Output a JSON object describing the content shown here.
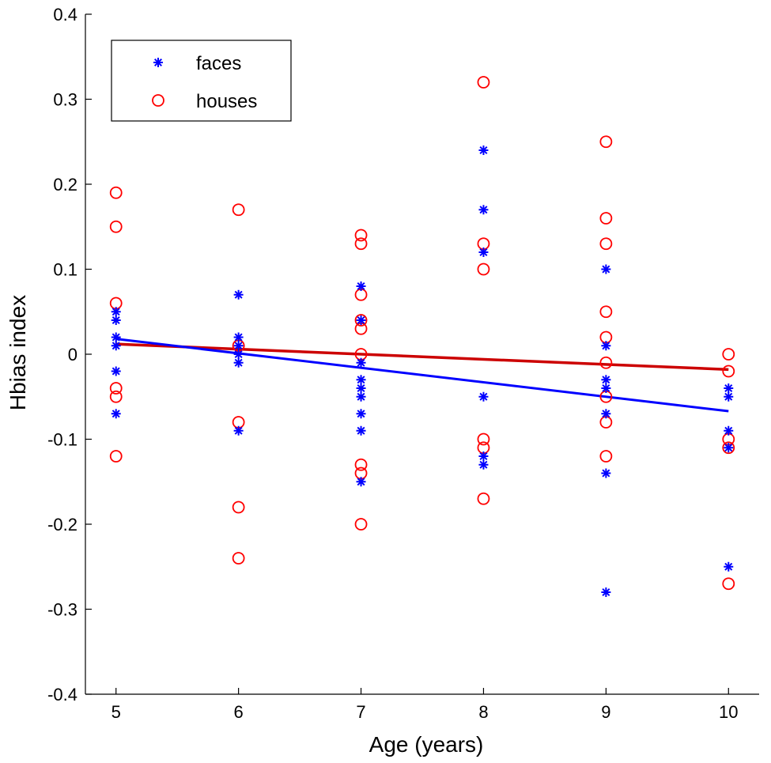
{
  "chart_data": {
    "type": "scatter",
    "title": "",
    "xlabel": "Age (years)",
    "ylabel": "Hbias index",
    "xlim": [
      4.75,
      10.25
    ],
    "ylim": [
      -0.4,
      0.4
    ],
    "xticks": [
      5,
      6,
      7,
      8,
      9,
      10
    ],
    "xtick_labels": [
      "5",
      "6",
      "7",
      "8",
      "9",
      "10"
    ],
    "yticks": [
      -0.4,
      -0.3,
      -0.2,
      -0.1,
      0,
      0.1,
      0.2,
      0.3,
      0.4
    ],
    "ytick_labels": [
      "-0.4",
      "-0.3",
      "-0.2",
      "-0.1",
      "0",
      "0.1",
      "0.2",
      "0.3",
      "0.4"
    ],
    "grid": false,
    "legend_position": "top-left",
    "series": [
      {
        "name": "faces",
        "marker": "asterisk",
        "color": "#0000ff",
        "points": [
          [
            5,
            0.05
          ],
          [
            5,
            0.04
          ],
          [
            5,
            0.02
          ],
          [
            5,
            0.01
          ],
          [
            5,
            -0.02
          ],
          [
            5,
            -0.07
          ],
          [
            6,
            0.07
          ],
          [
            6,
            0.02
          ],
          [
            6,
            0.01
          ],
          [
            6,
            0.0
          ],
          [
            6,
            -0.01
          ],
          [
            6,
            -0.09
          ],
          [
            7,
            0.08
          ],
          [
            7,
            0.04
          ],
          [
            7,
            -0.01
          ],
          [
            7,
            -0.03
          ],
          [
            7,
            -0.04
          ],
          [
            7,
            -0.05
          ],
          [
            7,
            -0.07
          ],
          [
            7,
            -0.09
          ],
          [
            7,
            -0.15
          ],
          [
            8,
            0.24
          ],
          [
            8,
            0.17
          ],
          [
            8,
            0.12
          ],
          [
            8,
            -0.05
          ],
          [
            8,
            -0.12
          ],
          [
            8,
            -0.13
          ],
          [
            9,
            0.1
          ],
          [
            9,
            0.01
          ],
          [
            9,
            -0.03
          ],
          [
            9,
            -0.04
          ],
          [
            9,
            -0.07
          ],
          [
            9,
            -0.14
          ],
          [
            9,
            -0.28
          ],
          [
            10,
            -0.04
          ],
          [
            10,
            -0.05
          ],
          [
            10,
            -0.09
          ],
          [
            10,
            -0.11
          ],
          [
            10,
            -0.25
          ]
        ],
        "fit": {
          "x": [
            5,
            10
          ],
          "y": [
            0.018,
            -0.067
          ]
        }
      },
      {
        "name": "houses",
        "marker": "circle",
        "color": "#ff0000",
        "fit_color": "#cc0000",
        "points": [
          [
            5,
            0.19
          ],
          [
            5,
            0.15
          ],
          [
            5,
            0.06
          ],
          [
            5,
            -0.04
          ],
          [
            5,
            -0.05
          ],
          [
            5,
            -0.12
          ],
          [
            6,
            0.17
          ],
          [
            6,
            0.01
          ],
          [
            6,
            -0.08
          ],
          [
            6,
            -0.18
          ],
          [
            6,
            -0.24
          ],
          [
            7,
            0.14
          ],
          [
            7,
            0.13
          ],
          [
            7,
            0.07
          ],
          [
            7,
            0.04
          ],
          [
            7,
            0.03
          ],
          [
            7,
            0.0
          ],
          [
            7,
            -0.13
          ],
          [
            7,
            -0.14
          ],
          [
            7,
            -0.2
          ],
          [
            8,
            0.32
          ],
          [
            8,
            0.13
          ],
          [
            8,
            0.1
          ],
          [
            8,
            -0.1
          ],
          [
            8,
            -0.11
          ],
          [
            8,
            -0.17
          ],
          [
            9,
            0.25
          ],
          [
            9,
            0.16
          ],
          [
            9,
            0.13
          ],
          [
            9,
            0.05
          ],
          [
            9,
            0.02
          ],
          [
            9,
            -0.01
          ],
          [
            9,
            -0.05
          ],
          [
            9,
            -0.08
          ],
          [
            9,
            -0.12
          ],
          [
            10,
            0.0
          ],
          [
            10,
            -0.02
          ],
          [
            10,
            -0.1
          ],
          [
            10,
            -0.11
          ],
          [
            10,
            -0.27
          ]
        ],
        "fit": {
          "x": [
            5,
            10
          ],
          "y": [
            0.012,
            -0.018
          ]
        }
      }
    ]
  }
}
